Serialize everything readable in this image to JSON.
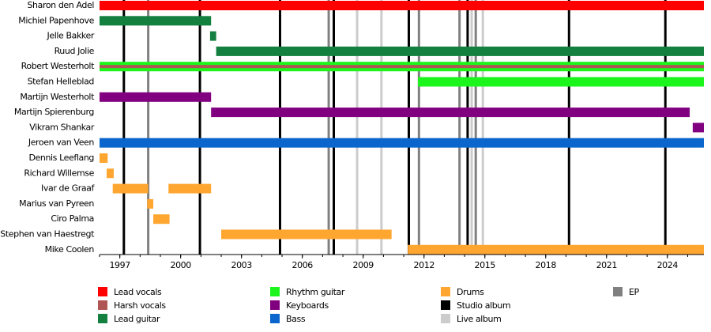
{
  "chart_data": {
    "type": "timeline",
    "categories": [
      "Sharon den Adel",
      "Michiel Papenhove",
      "Jelle Bakker",
      "Ruud Jolie",
      "Robert Westerholt",
      "Stefan Helleblad",
      "Martijn Westerholt",
      "Martijn Spierenburg",
      "Vikram Shankar",
      "Jeroen van Veen",
      "Dennis Leeflang",
      "Richard Willemse",
      "Ivar de Graaf",
      "Marius van Pyreen",
      "Ciro Palma",
      "Stephen van Haestregt",
      "Mike Coolen"
    ],
    "xlim": [
      1996,
      2025.8
    ],
    "xticks": [
      1997,
      2000,
      2003,
      2006,
      2009,
      2012,
      2015,
      2018,
      2021,
      2024
    ],
    "series": [
      {
        "name": "Lead vocals",
        "color": "#ff0000",
        "values": [
          [
            [
              1996,
              2025.8
            ]
          ],
          null,
          null,
          null,
          null,
          null,
          null,
          null,
          null,
          null,
          null,
          null,
          null,
          null,
          null,
          null,
          null
        ]
      },
      {
        "name": "Lead guitar",
        "color": "#138040",
        "values": [
          null,
          [
            [
              1996,
              2001.5
            ]
          ],
          [
            [
              2001.45,
              2001.75
            ]
          ],
          [
            [
              2001.75,
              2025.8
            ]
          ],
          null,
          null,
          null,
          null,
          null,
          null,
          null,
          null,
          null,
          null,
          null,
          null,
          null
        ]
      },
      {
        "name": "Rhythm guitar",
        "color": "#1cf51c",
        "values": [
          null,
          null,
          null,
          null,
          [
            [
              1996,
              2025.8
            ]
          ],
          [
            [
              2011.7,
              2025.8
            ]
          ],
          null,
          null,
          null,
          null,
          null,
          null,
          null,
          null,
          null,
          null,
          null
        ]
      },
      {
        "name": "Keyboards",
        "color": "#800080",
        "values": [
          null,
          null,
          null,
          null,
          null,
          null,
          [
            [
              1996,
              2001.5
            ]
          ],
          [
            [
              2001.5,
              2025.1
            ]
          ],
          [
            [
              2025.25,
              2025.8
            ]
          ],
          null,
          null,
          null,
          null,
          null,
          null,
          null,
          null
        ]
      },
      {
        "name": "Bass",
        "color": "#0a66cc",
        "values": [
          null,
          null,
          null,
          null,
          null,
          null,
          null,
          null,
          null,
          [
            [
              1996,
              2025.8
            ]
          ],
          null,
          null,
          null,
          null,
          null,
          null,
          null
        ]
      },
      {
        "name": "Drums",
        "color": "#ffa630",
        "values": [
          null,
          null,
          null,
          null,
          null,
          null,
          null,
          null,
          null,
          null,
          [
            [
              1996,
              1996.4
            ]
          ],
          [
            [
              1996.35,
              1996.7
            ]
          ],
          [
            [
              1996.65,
              1998.4
            ],
            [
              1999.4,
              2001.5
            ]
          ],
          [
            [
              1998.35,
              1998.65
            ]
          ],
          [
            [
              1998.65,
              1999.45
            ]
          ],
          [
            [
              2002,
              2010.4
            ]
          ],
          [
            [
              2011.2,
              2025.8
            ]
          ]
        ]
      },
      {
        "name": "Harsh vocals",
        "color": "#b05555",
        "thin": true,
        "values": [
          null,
          null,
          null,
          null,
          [
            [
              1996,
              2025.8
            ]
          ],
          null,
          null,
          null,
          null,
          null,
          null,
          null,
          null,
          null,
          null,
          null,
          null
        ]
      }
    ],
    "events": [
      {
        "name": "Studio album",
        "color": "#000000",
        "x": [
          1997.2,
          2000.95,
          2004.9,
          2007.55,
          2011.25,
          2014.15,
          2019.15,
          2023.9
        ]
      },
      {
        "name": "Live album",
        "color": "#cccccc",
        "x": [
          2008.7,
          2009.9,
          2014.35,
          2014.9
        ]
      },
      {
        "name": "EP",
        "color": "#808080",
        "x": [
          1998.4,
          2007.3,
          2011.75,
          2013.75,
          2014.55
        ]
      }
    ],
    "legend_order": [
      "Lead vocals",
      "Harsh vocals",
      "Lead guitar",
      "Rhythm guitar",
      "Keyboards",
      "Bass",
      "Drums",
      "Studio album",
      "Live album",
      "EP"
    ]
  }
}
